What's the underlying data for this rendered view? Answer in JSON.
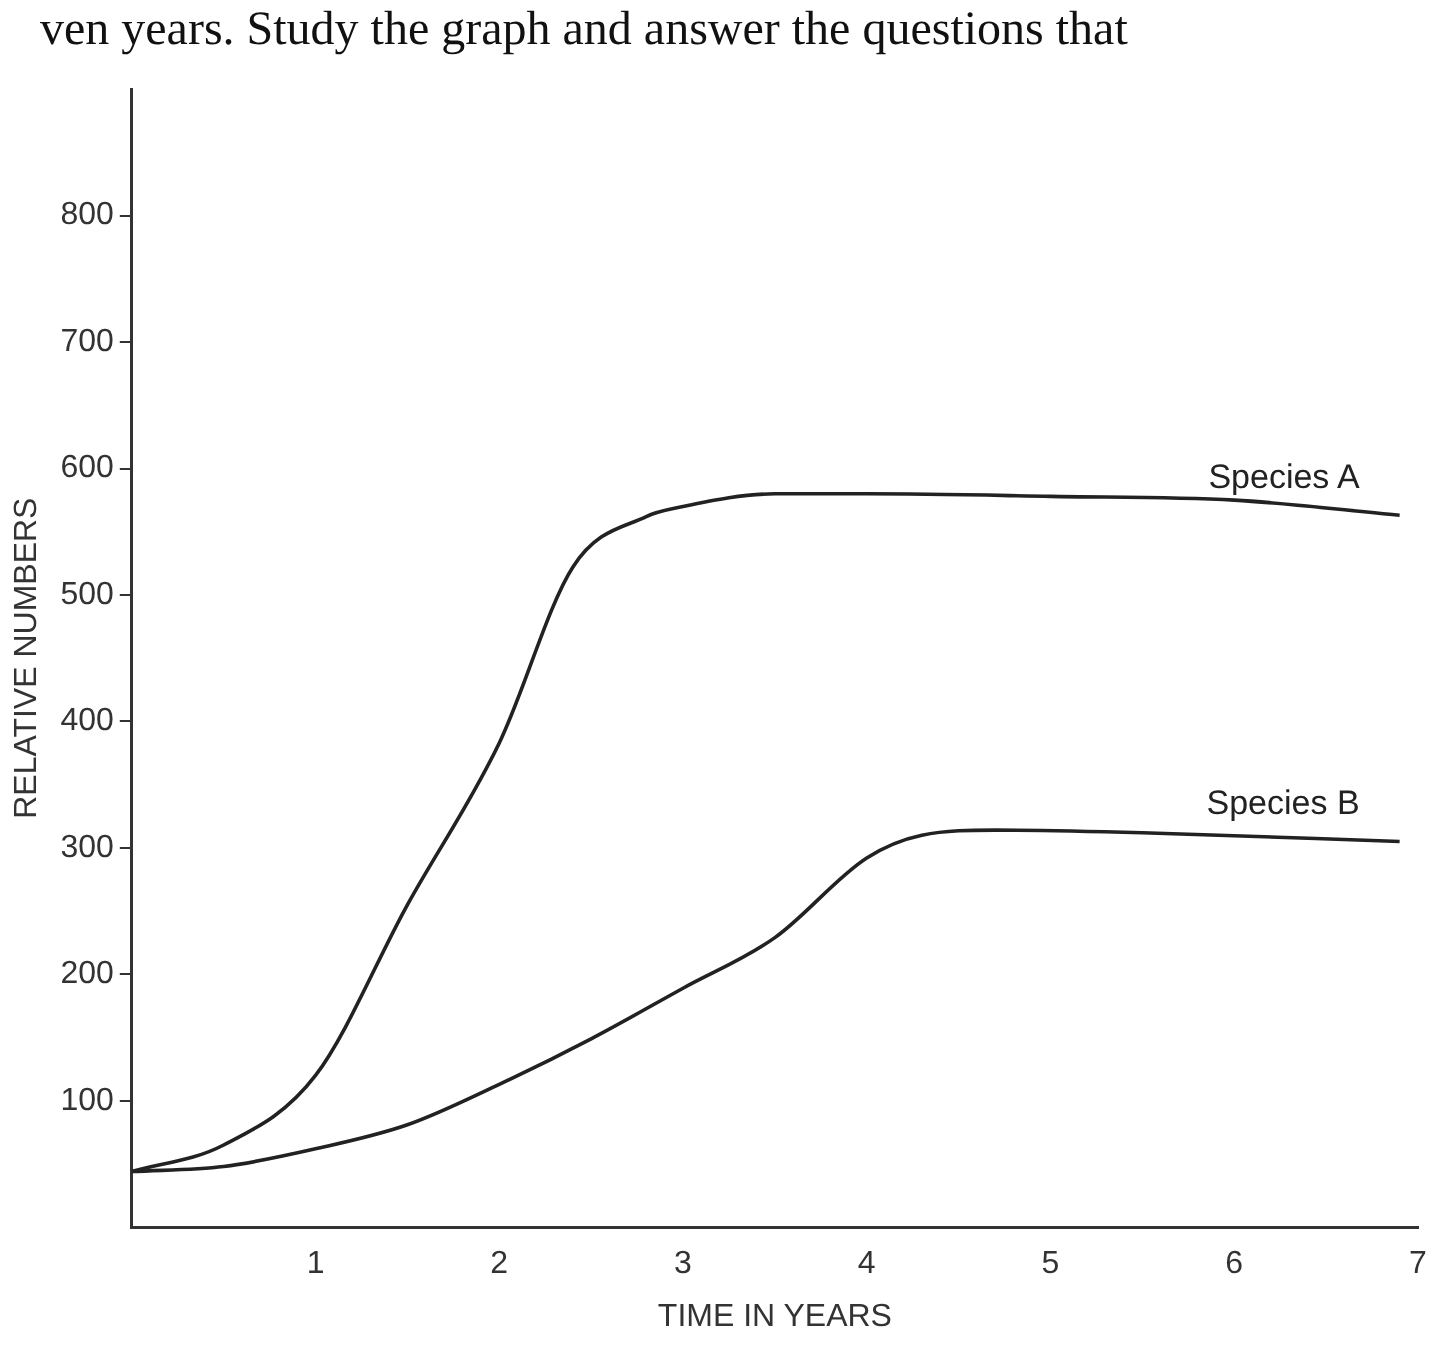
{
  "chart_data": {
    "type": "line",
    "xlabel": "TIME IN YEARS",
    "ylabel": "RELATIVE NUMBERS",
    "annotations": [
      "ven years. Study the graph and answer the questions that"
    ],
    "xlim": [
      0,
      7
    ],
    "xticks": [
      {
        "value": 0,
        "label": null
      },
      1,
      2,
      3,
      4,
      5,
      6,
      7
    ],
    "ylim": [
      0,
      900
    ],
    "yticks": [
      100,
      200,
      300,
      400,
      500,
      600,
      700,
      800
    ],
    "grid": false,
    "legend": false,
    "marker": "none",
    "line_style": "solid",
    "series": [
      {
        "name": "Species A",
        "color": "#222222",
        "x": [
          0,
          0.5,
          1,
          1.5,
          2,
          2.4,
          2.8,
          3,
          3.5,
          4,
          5,
          6,
          6.9
        ],
        "values": [
          44,
          65,
          120,
          255,
          383,
          522,
          562,
          570,
          580,
          580,
          578,
          575,
          563
        ]
      },
      {
        "name": "Species B",
        "color": "#222222",
        "x": [
          0,
          0.5,
          1,
          1.5,
          2,
          2.5,
          3,
          3.5,
          4,
          4.3,
          4.7,
          5.5,
          6.9
        ],
        "values": [
          44,
          48,
          62,
          81,
          113,
          149,
          189,
          229,
          292,
          310,
          314,
          312,
          305
        ]
      }
    ]
  }
}
